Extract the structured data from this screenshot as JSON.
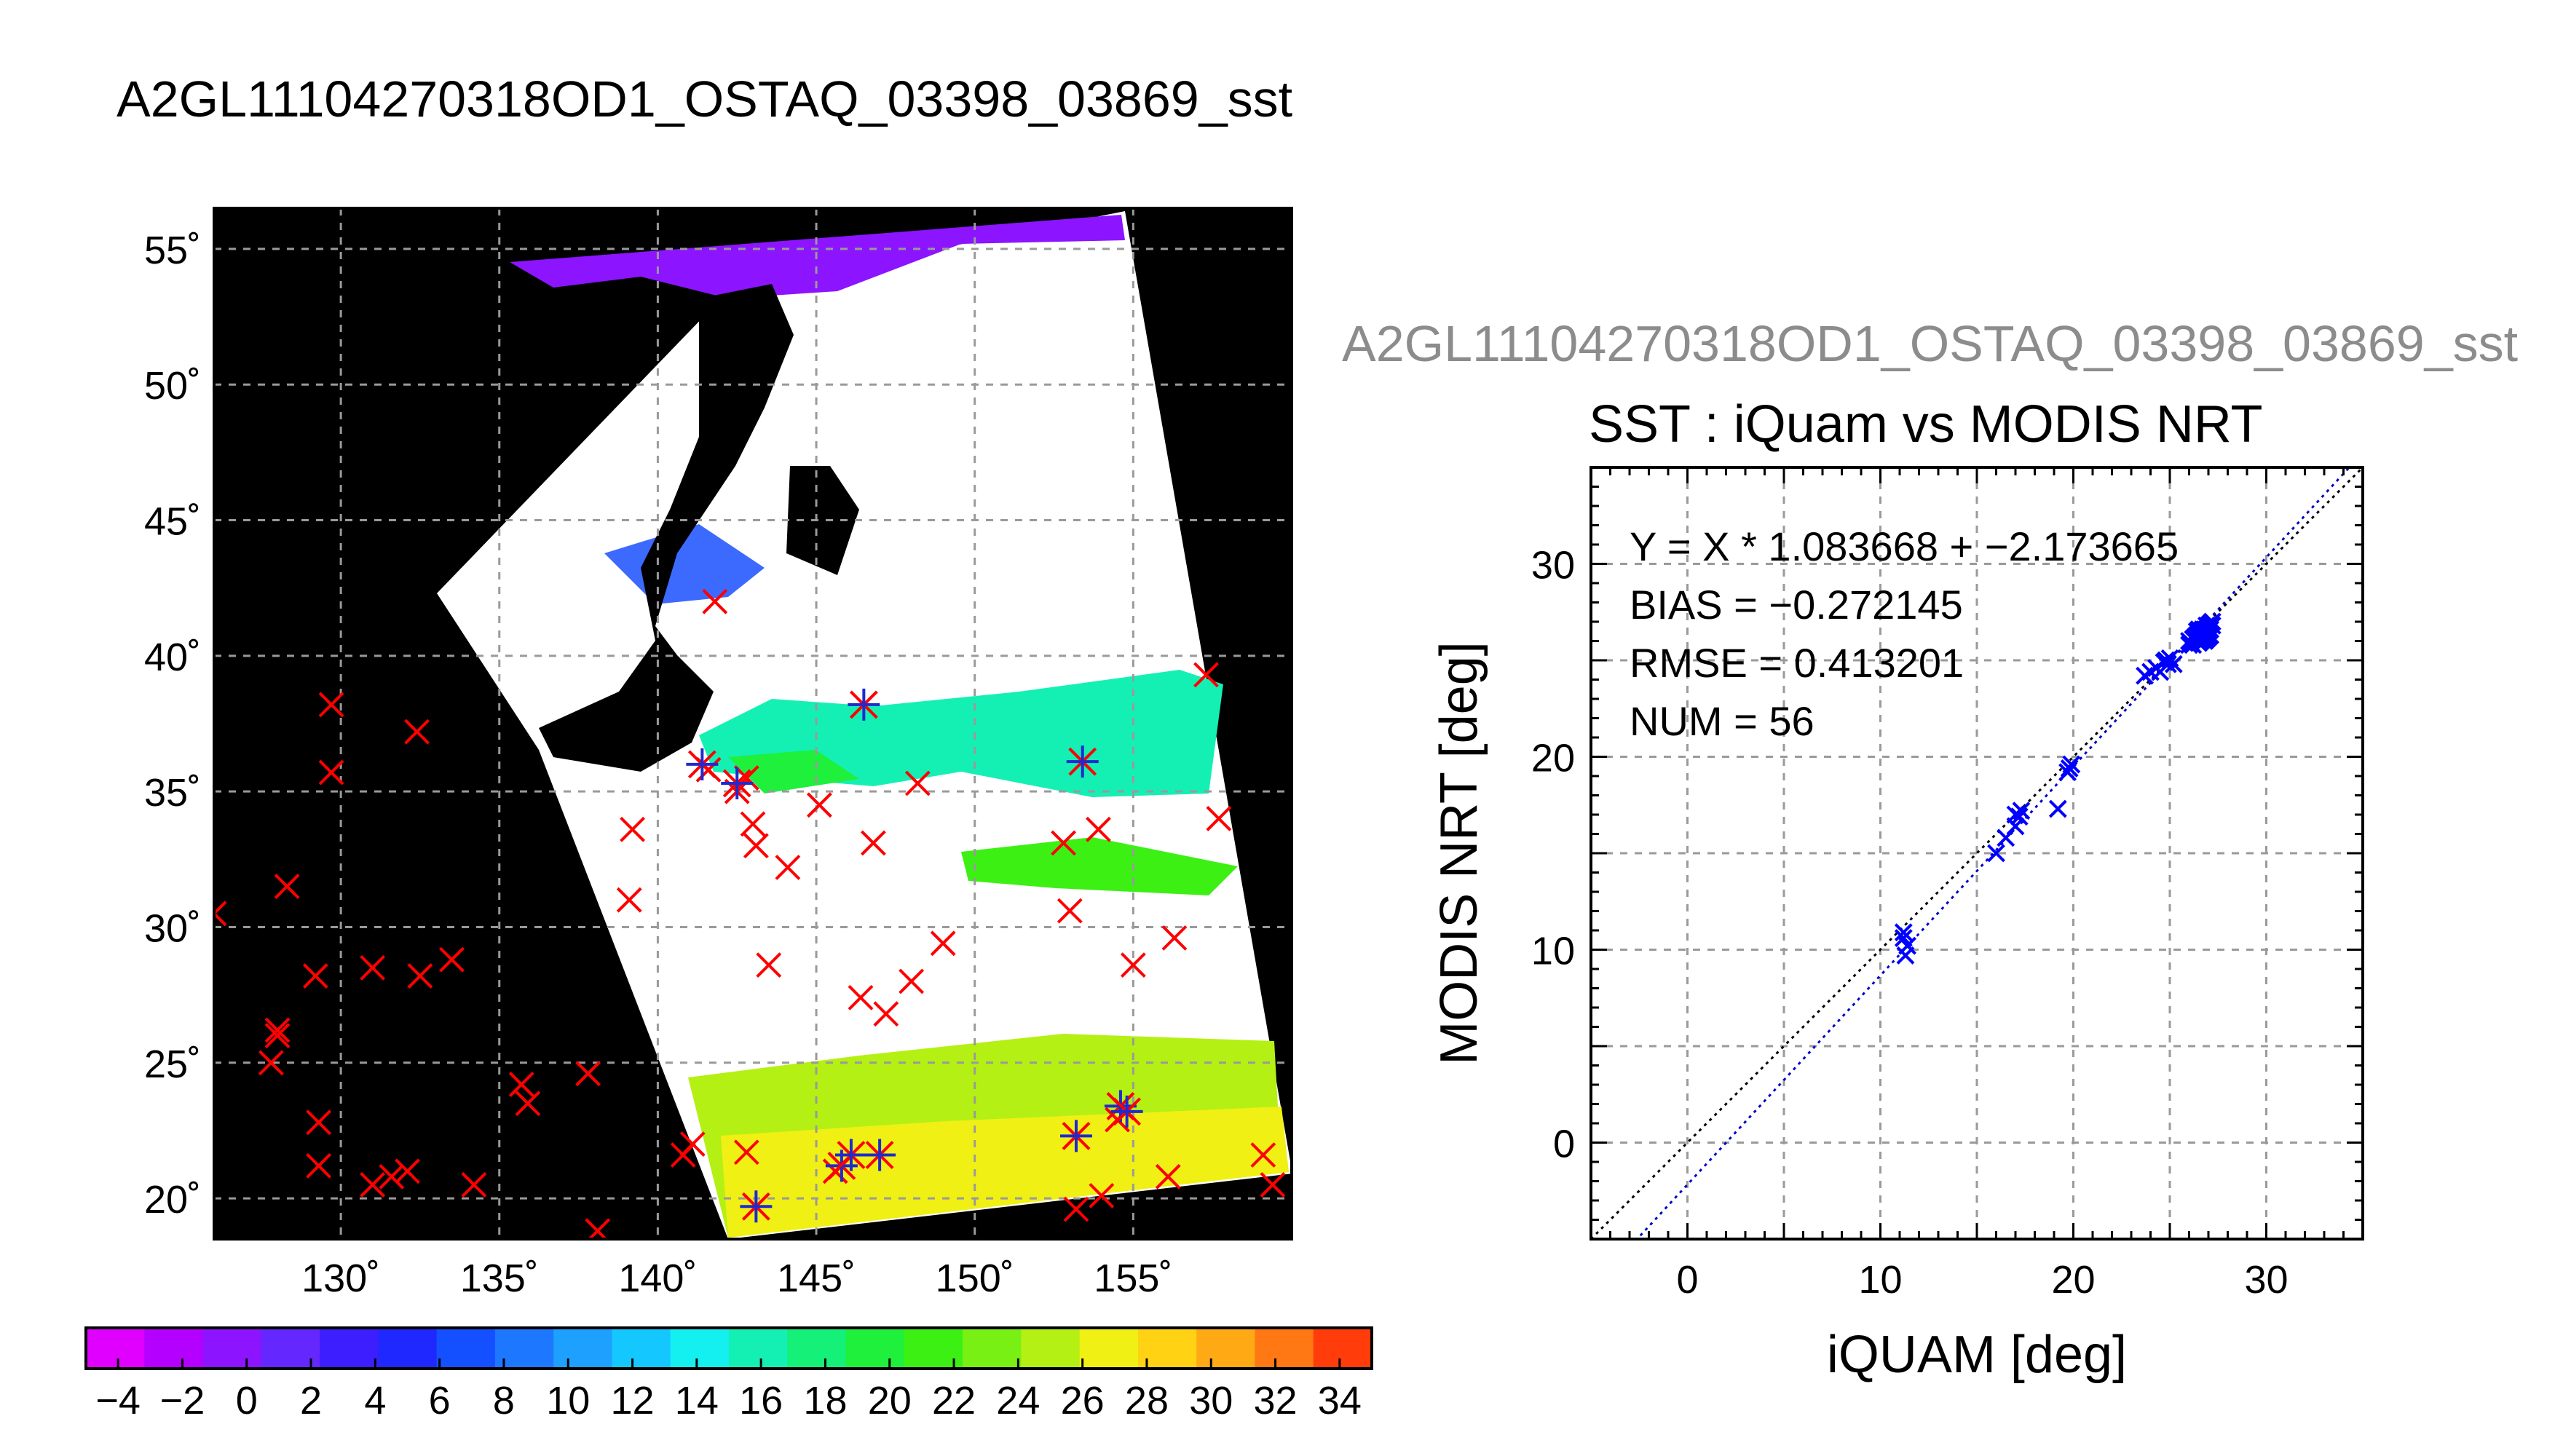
{
  "title": "A2GL11104270318OD1_OSTAQ_03398_03869_sst",
  "scatter_top_label": "A2GL11104270318OD1_OSTAQ_03398_03869_sst",
  "map": {
    "lat_labels": [
      "55˚",
      "50˚",
      "45˚",
      "40˚",
      "35˚",
      "30˚",
      "25˚",
      "20˚"
    ],
    "lon_labels": [
      "130˚",
      "135˚",
      "140˚",
      "145˚",
      "150˚",
      "155˚"
    ],
    "lon_range": [
      126,
      160
    ],
    "lat_range": [
      18.5,
      56.5
    ]
  },
  "colorbar": {
    "labels": [
      "−4",
      "−2",
      "0",
      "2",
      "4",
      "6",
      "8",
      "10",
      "12",
      "14",
      "16",
      "18",
      "20",
      "22",
      "24",
      "26",
      "28",
      "30",
      "32",
      "34"
    ],
    "range": [
      -5,
      35
    ],
    "colors": [
      "#e000ff",
      "#b400ff",
      "#8c14ff",
      "#6428ff",
      "#3c1eff",
      "#1e28ff",
      "#1450ff",
      "#1e78ff",
      "#1ea0ff",
      "#14c8ff",
      "#14f0f0",
      "#14f0b4",
      "#14f078",
      "#1ef03c",
      "#3cf014",
      "#78f014",
      "#b4f014",
      "#f0f014",
      "#ffd214",
      "#ffaa14",
      "#ff7814",
      "#ff3c0a"
    ]
  },
  "chart_data": [
    {
      "type": "scatter",
      "title": "SST : iQuam vs MODIS NRT",
      "xlabel": "iQUAM [deg]",
      "ylabel": "MODIS NRT [deg]",
      "xlim": [
        -5,
        35
      ],
      "ylim": [
        -5,
        35
      ],
      "xticks": [
        "0",
        "10",
        "20",
        "30"
      ],
      "yticks": [
        "0",
        "10",
        "20",
        "30"
      ],
      "grid": true,
      "annotations": [
        "Y = X * 1.083668 + −2.173665",
        "BIAS = −0.272145",
        "RMSE = 0.413201",
        "NUM = 56"
      ],
      "fit": {
        "slope": 1.083668,
        "intercept": -2.173665,
        "color": "#0000cc"
      },
      "identity_color": "#000000",
      "point_color": "#0000ff",
      "points": [
        [
          11.2,
          10.6
        ],
        [
          11.2,
          10.9
        ],
        [
          11.4,
          10.2
        ],
        [
          11.3,
          9.7
        ],
        [
          16.0,
          15.0
        ],
        [
          16.5,
          15.8
        ],
        [
          17.0,
          16.4
        ],
        [
          17.3,
          17.2
        ],
        [
          17.0,
          17.0
        ],
        [
          17.2,
          16.9
        ],
        [
          19.2,
          17.3
        ],
        [
          19.7,
          19.2
        ],
        [
          19.9,
          19.6
        ],
        [
          19.8,
          19.4
        ],
        [
          23.7,
          24.2
        ],
        [
          24.0,
          24.4
        ],
        [
          24.3,
          24.6
        ],
        [
          24.8,
          25.0
        ],
        [
          25.0,
          25.1
        ],
        [
          25.2,
          24.8
        ],
        [
          24.7,
          24.9
        ],
        [
          24.5,
          24.4
        ],
        [
          24.9,
          24.8
        ],
        [
          26.0,
          26.0
        ],
        [
          26.2,
          25.8
        ],
        [
          26.3,
          26.1
        ],
        [
          26.4,
          26.3
        ],
        [
          26.5,
          25.9
        ],
        [
          26.6,
          26.5
        ],
        [
          26.7,
          26.2
        ],
        [
          26.8,
          26.6
        ],
        [
          26.9,
          26.1
        ],
        [
          27.0,
          26.8
        ],
        [
          27.1,
          26.3
        ],
        [
          27.2,
          27.0
        ],
        [
          26.4,
          26.0
        ],
        [
          26.5,
          26.4
        ],
        [
          26.6,
          26.0
        ],
        [
          26.7,
          26.6
        ],
        [
          26.8,
          26.3
        ],
        [
          26.9,
          26.8
        ],
        [
          27.0,
          26.5
        ],
        [
          27.1,
          26.9
        ],
        [
          26.3,
          26.2
        ],
        [
          26.2,
          26.1
        ],
        [
          26.1,
          25.9
        ],
        [
          26.0,
          25.8
        ],
        [
          26.8,
          26.0
        ],
        [
          27.0,
          26.2
        ],
        [
          26.5,
          26.6
        ],
        [
          26.6,
          26.3
        ],
        [
          26.9,
          26.6
        ],
        [
          27.1,
          26.6
        ],
        [
          26.4,
          26.5
        ],
        [
          26.7,
          26.4
        ],
        [
          27.2,
          26.8
        ]
      ]
    }
  ],
  "map_overlays": {
    "red_x_marks": [
      [
        126,
        30.5
      ],
      [
        128.3,
        31.5
      ],
      [
        128.0,
        26.0
      ],
      [
        127.8,
        25.0
      ],
      [
        128.0,
        26.2
      ],
      [
        129.2,
        28.2
      ],
      [
        129.3,
        22.8
      ],
      [
        129.3,
        21.2
      ],
      [
        129.7,
        35.7
      ],
      [
        129.7,
        38.2
      ],
      [
        131.0,
        20.5
      ],
      [
        131.0,
        28.5
      ],
      [
        131.6,
        20.8
      ],
      [
        132.1,
        21.0
      ],
      [
        132.4,
        37.2
      ],
      [
        132.5,
        28.2
      ],
      [
        133.5,
        28.8
      ],
      [
        134.2,
        20.5
      ],
      [
        135.7,
        24.2
      ],
      [
        135.9,
        23.5
      ],
      [
        137.8,
        24.6
      ],
      [
        138.1,
        18.8
      ],
      [
        139.1,
        31.0
      ],
      [
        139.2,
        33.6
      ],
      [
        140.8,
        21.6
      ],
      [
        141.1,
        22.0
      ],
      [
        141.6,
        35.8
      ],
      [
        141.8,
        42.0
      ],
      [
        142.5,
        35.0
      ],
      [
        142.8,
        21.7
      ],
      [
        142.8,
        35.5
      ],
      [
        143.0,
        33.8
      ],
      [
        143.1,
        33.0
      ],
      [
        143.5,
        28.6
      ],
      [
        144.1,
        32.2
      ],
      [
        145.1,
        34.5
      ],
      [
        145.6,
        21.0
      ],
      [
        146.4,
        27.4
      ],
      [
        146.8,
        33.1
      ],
      [
        147.2,
        26.8
      ],
      [
        148.0,
        28.0
      ],
      [
        148.2,
        35.3
      ],
      [
        149.0,
        29.4
      ],
      [
        152.8,
        33.1
      ],
      [
        153.0,
        30.6
      ],
      [
        153.2,
        19.6
      ],
      [
        153.9,
        33.6
      ],
      [
        154.0,
        20.1
      ],
      [
        154.5,
        22.9
      ],
      [
        155.0,
        28.6
      ],
      [
        156.1,
        20.8
      ],
      [
        156.3,
        29.6
      ],
      [
        157.3,
        39.3
      ],
      [
        157.7,
        34.0
      ],
      [
        159.1,
        21.6
      ],
      [
        159.4,
        20.5
      ]
    ],
    "star_marks": [
      [
        141.4,
        36.0
      ],
      [
        142.5,
        35.3
      ],
      [
        146.5,
        38.2
      ],
      [
        153.4,
        36.1
      ],
      [
        143.1,
        19.7
      ],
      [
        145.8,
        21.2
      ],
      [
        146.1,
        21.6
      ],
      [
        147.0,
        21.6
      ],
      [
        153.2,
        22.3
      ],
      [
        154.6,
        23.4
      ],
      [
        154.8,
        23.2
      ]
    ]
  }
}
